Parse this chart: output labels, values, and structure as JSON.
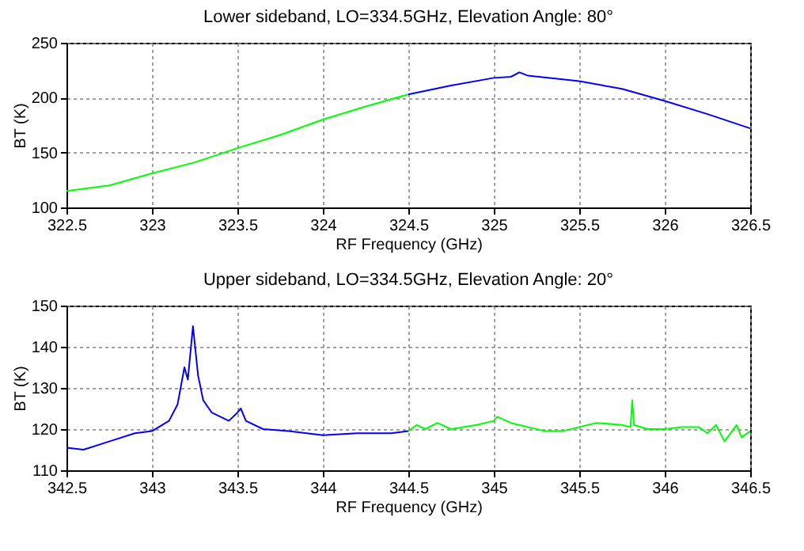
{
  "chart_data": [
    {
      "type": "line",
      "title": "Lower sideband, LO=334.5GHz, Elevation Angle: 80°",
      "xlabel": "RF Frequency (GHz)",
      "ylabel": "BT (K)",
      "xlim": [
        322.5,
        326.5
      ],
      "ylim": [
        100,
        250
      ],
      "xticks": [
        322.5,
        323,
        323.5,
        324,
        324.5,
        325,
        325.5,
        326,
        326.5
      ],
      "yticks": [
        100,
        150,
        200,
        250
      ],
      "grid": true,
      "series": [
        {
          "color": "#00ff00",
          "x": [
            322.5,
            322.75,
            323,
            323.25,
            323.5,
            323.75,
            324,
            324.25,
            324.5
          ],
          "values": [
            115,
            120,
            131,
            141,
            154,
            166,
            180,
            192,
            203
          ]
        },
        {
          "color": "#0000ff",
          "x": [
            324.5,
            324.75,
            325,
            325.1,
            325.15,
            325.2,
            325.5,
            325.75,
            326,
            326.25,
            326.5
          ],
          "values": [
            203,
            211,
            218,
            219,
            223,
            220,
            215,
            208,
            197,
            185,
            172
          ]
        }
      ]
    },
    {
      "type": "line",
      "title": "Upper sideband, LO=334.5GHz, Elevation Angle: 20°",
      "xlabel": "RF Frequency (GHz)",
      "ylabel": "BT (K)",
      "xlim": [
        342.5,
        346.5
      ],
      "ylim": [
        110,
        150
      ],
      "xticks": [
        342.5,
        343,
        343.5,
        344,
        344.5,
        345,
        345.5,
        346,
        346.5
      ],
      "yticks": [
        110,
        120,
        130,
        140,
        150
      ],
      "grid": true,
      "series": [
        {
          "color": "#0000ff",
          "x": [
            342.5,
            342.6,
            342.75,
            342.9,
            343,
            343.1,
            343.15,
            343.19,
            343.21,
            343.24,
            343.27,
            343.3,
            343.35,
            343.45,
            343.5,
            343.52,
            343.55,
            343.65,
            343.8,
            344,
            344.2,
            344.4,
            344.5
          ],
          "values": [
            115.5,
            115,
            117,
            119,
            119.5,
            122,
            126,
            135,
            132,
            145,
            133,
            127,
            124,
            122,
            124,
            125,
            122,
            120,
            119.5,
            118.5,
            119,
            119,
            119.5
          ]
        },
        {
          "color": "#00ff00",
          "x": [
            344.5,
            344.55,
            344.6,
            344.67,
            344.75,
            344.9,
            345,
            345.02,
            345.1,
            345.3,
            345.4,
            345.5,
            345.6,
            345.75,
            345.8,
            345.81,
            345.82,
            345.9,
            346,
            346.1,
            346.2,
            346.25,
            346.3,
            346.35,
            346.42,
            346.45,
            346.5
          ],
          "values": [
            119.5,
            121,
            120,
            121.5,
            120,
            121,
            122,
            123,
            121.5,
            119.5,
            119.5,
            120.5,
            121.5,
            121,
            120.5,
            127,
            121,
            120,
            120,
            120.5,
            120.5,
            119,
            121,
            117,
            121,
            118,
            119.5
          ]
        }
      ]
    }
  ]
}
